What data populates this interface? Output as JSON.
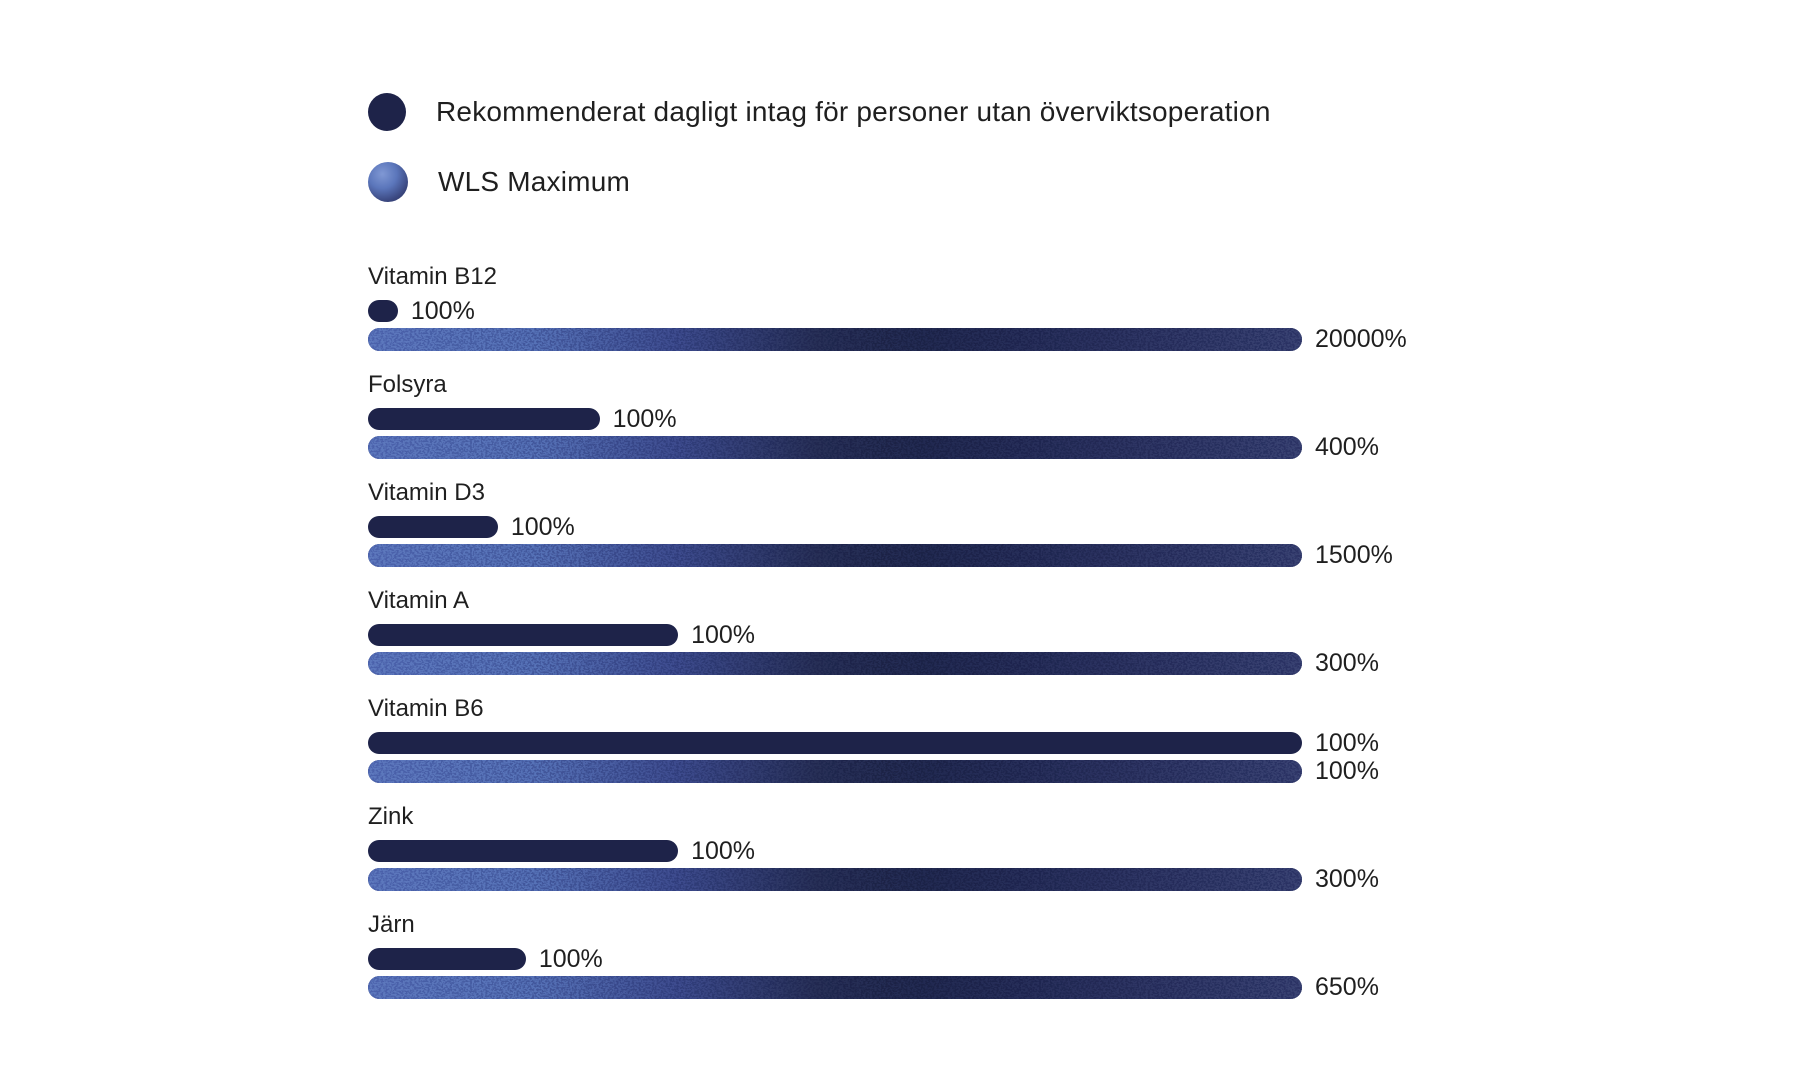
{
  "page": {
    "background_color": "#ffffff",
    "text_color": "#1f1f1f"
  },
  "legend": {
    "items": [
      {
        "label": "Rekommenderat dagligt intag för personer utan överviktsoperation",
        "swatch": "solid-dark-circle",
        "color": "#1e2349"
      },
      {
        "label": "WLS Maximum",
        "swatch": "gradient-sphere",
        "color_light": "#8098d4",
        "color_dark": "#262e5c"
      }
    ]
  },
  "chart_data": {
    "type": "bar",
    "orientation": "horizontal",
    "title": "",
    "xlabel": "",
    "ylabel": "",
    "value_unit": "%",
    "grid": false,
    "axes": "none",
    "legend_position": "top-left",
    "categories": [
      "Vitamin B12",
      "Folsyra",
      "Vitamin D3",
      "Vitamin A",
      "Vitamin B6",
      "Zink",
      "Järn"
    ],
    "series": [
      {
        "name": "Rekommenderat dagligt intag för personer utan överviktsoperation",
        "values": [
          100,
          100,
          100,
          100,
          100,
          100,
          100
        ]
      },
      {
        "name": "WLS Maximum",
        "values": [
          20000,
          400,
          1500,
          300,
          100,
          300,
          650
        ]
      }
    ],
    "rows": [
      {
        "label": "Vitamin B12",
        "rdi_value": "100%",
        "rdi_width_pct": 3.2,
        "wls_value": "20000%",
        "wls_width_pct": 100
      },
      {
        "label": "Folsyra",
        "rdi_value": "100%",
        "rdi_width_pct": 24.8,
        "wls_value": "400%",
        "wls_width_pct": 100
      },
      {
        "label": "Vitamin D3",
        "rdi_value": "100%",
        "rdi_width_pct": 13.9,
        "wls_value": "1500%",
        "wls_width_pct": 100
      },
      {
        "label": "Vitamin A",
        "rdi_value": "100%",
        "rdi_width_pct": 33.2,
        "wls_value": "300%",
        "wls_width_pct": 100
      },
      {
        "label": "Vitamin B6",
        "rdi_value": "100%",
        "rdi_width_pct": 100,
        "wls_value": "100%",
        "wls_width_pct": 100
      },
      {
        "label": "Zink",
        "rdi_value": "100%",
        "rdi_width_pct": 33.2,
        "wls_value": "300%",
        "wls_width_pct": 100
      },
      {
        "label": "Järn",
        "rdi_value": "100%",
        "rdi_width_pct": 16.9,
        "wls_value": "650%",
        "wls_width_pct": 100
      }
    ],
    "colors": {
      "rdi_bar": "#1e2349",
      "wls_gradient_left": "#5d78bd",
      "wls_gradient_mid": "#232a52",
      "wls_gradient_right": "#3a4373",
      "value_text": "#1f1f1f"
    }
  }
}
